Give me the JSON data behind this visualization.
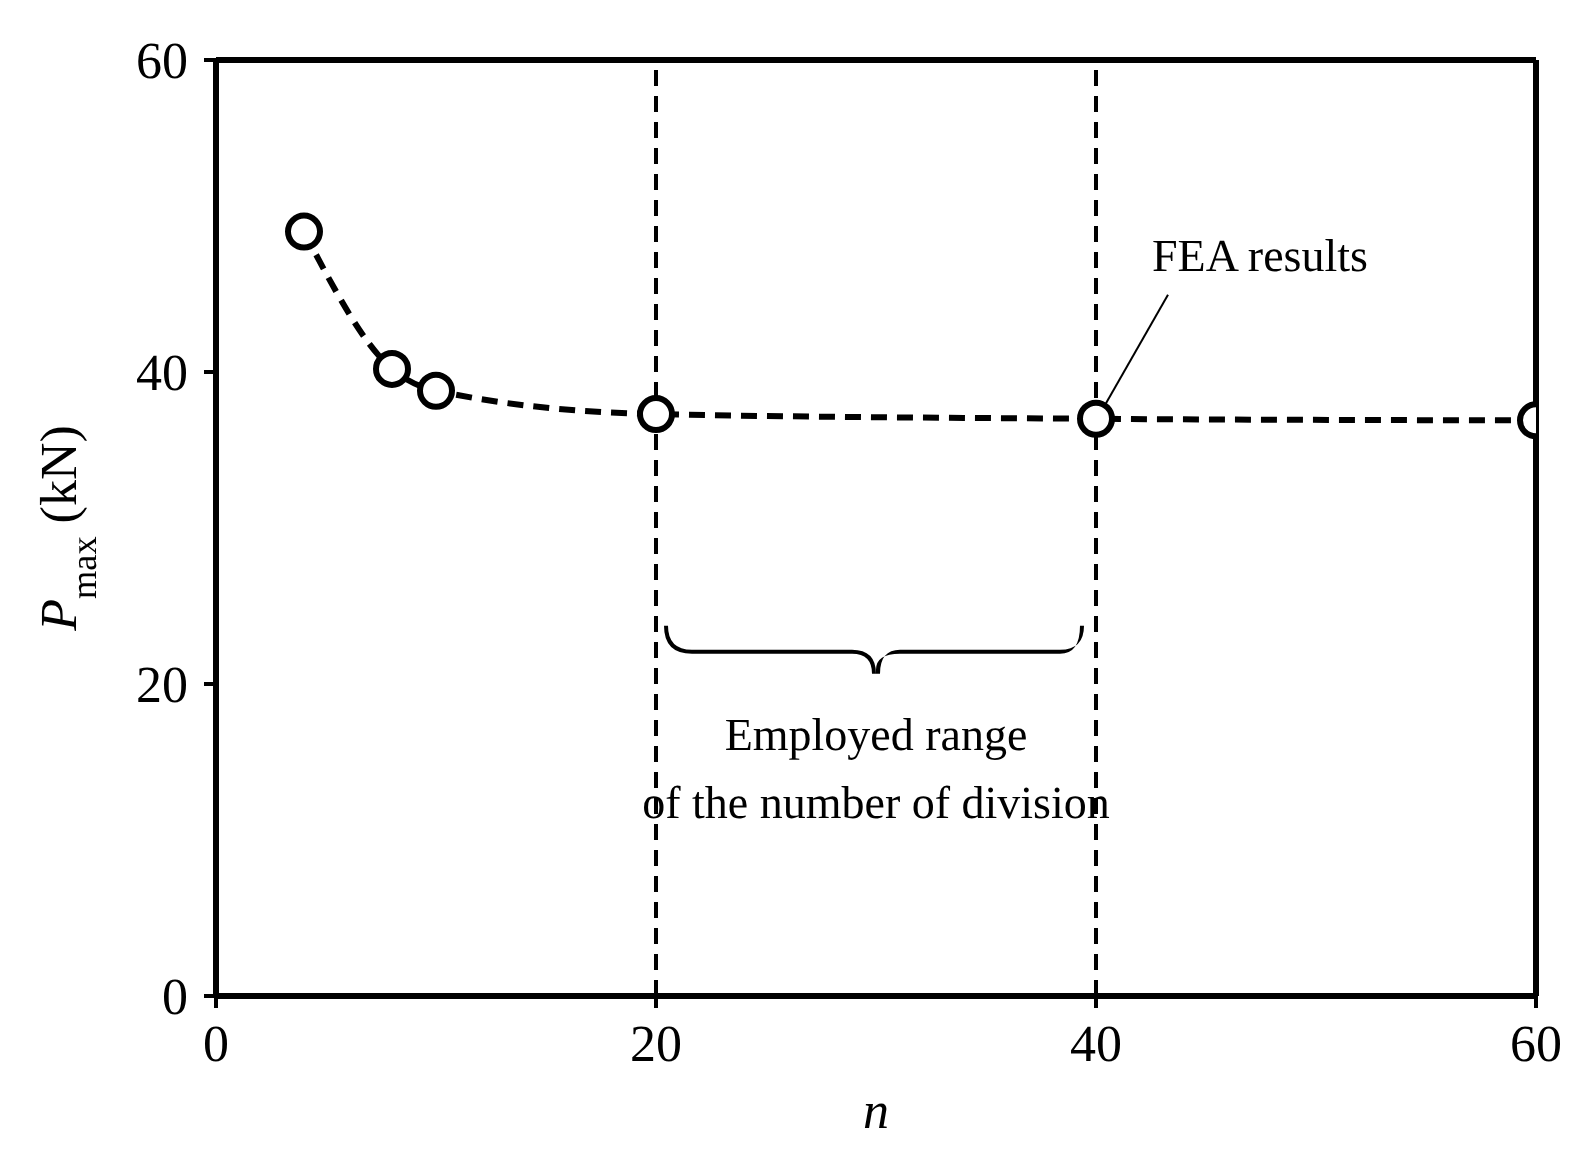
{
  "chart_data": {
    "type": "line",
    "xlabel": "n",
    "ylabel": "P$_{max}$ (kN)",
    "x": [
      4,
      8,
      10,
      20,
      40,
      60
    ],
    "series": [
      {
        "color": "#000000",
        "values": [
          49.0,
          40.2,
          38.8,
          37.3,
          37.0,
          36.9
        ]
      }
    ],
    "xlim": [
      0,
      60
    ],
    "xticks": [
      0,
      20,
      40,
      60
    ],
    "ylim": [
      0,
      60
    ],
    "yticks": [
      0,
      20,
      40,
      60
    ],
    "marker": "circle",
    "line_style": "dashed",
    "ref_lines": [
      {
        "axis": "x",
        "value": 20,
        "line_style": "dashed"
      },
      {
        "axis": "x",
        "value": 40,
        "line_style": "dashed"
      }
    ],
    "annotations": [
      {
        "text": "FEA results",
        "x": 40,
        "y": 37.0
      },
      "Employed range\nof the number of division"
    ]
  }
}
